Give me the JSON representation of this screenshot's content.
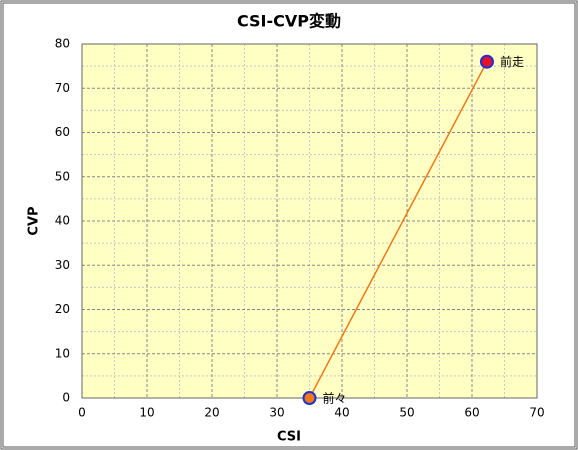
{
  "chart_data": {
    "type": "scatter",
    "title": "CSI-CVP変動",
    "x_label": "CSI",
    "y_label": "CVP",
    "xlim": [
      0,
      70
    ],
    "xticks": [
      0,
      10,
      20,
      30,
      40,
      50,
      60,
      70
    ],
    "ylim": [
      0,
      80
    ],
    "yticks": [
      0,
      10,
      20,
      30,
      40,
      50,
      60,
      70,
      80
    ],
    "grid": true,
    "plot_background": "#ffffc4",
    "series": [
      {
        "color": "#f07818",
        "x": [
          35,
          62.3
        ],
        "values": [
          0,
          76
        ],
        "point_labels": [
          "前々",
          "前走"
        ],
        "point_colors": [
          "#f07818",
          "#e8102a"
        ],
        "point_edge_color": "#2030d0"
      }
    ]
  }
}
